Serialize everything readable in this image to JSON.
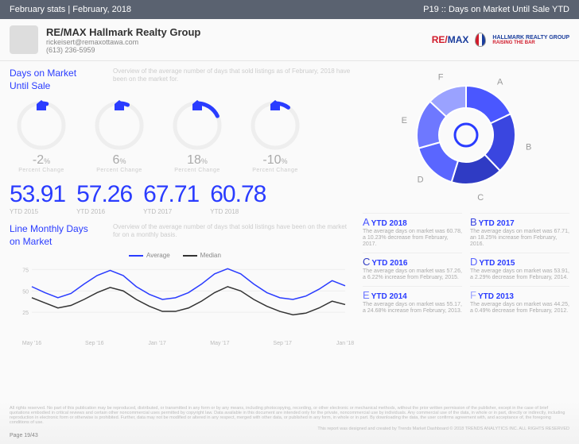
{
  "topbar": {
    "left": "February stats | February, 2018",
    "right": "P19 :: Days on Market Until Sale YTD"
  },
  "agent": {
    "name": "RE/MAX Hallmark Realty Group",
    "email": "rickeisert@remaxottawa.com",
    "phone": "(613) 236-5959"
  },
  "brand": {
    "remax": "RE/MAX",
    "hallmark_line1": "HALLMARK REALTY GROUP",
    "hallmark_line2": "RAISING THE BAR"
  },
  "days_section": {
    "title": "Days on Market",
    "title2": "Until Sale",
    "overview": "Overview of the average number of days that sold listings as of February, 2018 have been on the market for."
  },
  "gauges": [
    {
      "pct": "-2",
      "label": "Percent Change",
      "arc_deg": 14,
      "color": "#2a3cff"
    },
    {
      "pct": "6",
      "label": "Percent Change",
      "arc_deg": 22,
      "color": "#2a3cff"
    },
    {
      "pct": "18",
      "label": "Percent Change",
      "arc_deg": 65,
      "color": "#2a3cff"
    },
    {
      "pct": "-10",
      "label": "Percent Change",
      "arc_deg": 36,
      "color": "#2a3cff"
    }
  ],
  "ytd": [
    {
      "value": "53.91",
      "label": "YTD 2015"
    },
    {
      "value": "57.26",
      "label": "YTD 2016"
    },
    {
      "value": "67.71",
      "label": "YTD 2017"
    },
    {
      "value": "60.78",
      "label": "YTD 2018"
    }
  ],
  "line_section": {
    "title": "Line Monthly Days",
    "title2": "on Market",
    "overview": "Overview of the average number of days that sold listings have been on the market for on a monthly basis.",
    "legend_avg": "Average",
    "legend_med": "Median",
    "series_colors": {
      "avg": "#2a3cff",
      "med": "#333333"
    },
    "x_labels": [
      "May '16",
      "Sep '16",
      "Jan '17",
      "May '17",
      "Sep '17",
      "Jan '18"
    ],
    "y_ticks": [
      25,
      50,
      75
    ],
    "avg": [
      55,
      48,
      42,
      47,
      58,
      68,
      74,
      68,
      55,
      46,
      40,
      42,
      48,
      58,
      70,
      76,
      70,
      58,
      48,
      42,
      40,
      44,
      52,
      62,
      56
    ],
    "med": [
      42,
      36,
      30,
      33,
      40,
      48,
      54,
      50,
      40,
      32,
      26,
      26,
      30,
      38,
      48,
      55,
      50,
      40,
      32,
      26,
      22,
      24,
      30,
      38,
      34
    ]
  },
  "donut": {
    "labels": [
      "A",
      "B",
      "C",
      "D",
      "E",
      "F"
    ],
    "colors": [
      "#4a57ff",
      "#3a46e0",
      "#2f3bc4",
      "#5a66ff",
      "#6e78ff",
      "#9aa2ff"
    ],
    "values": [
      60.78,
      67.71,
      57.26,
      53.91,
      55.17,
      44.25
    ]
  },
  "donut_legend": [
    {
      "letter": "A",
      "letter_color": "#4a57ff",
      "title": "YTD 2018",
      "desc": "The average days on market was 60.78, a 10.23% decrease from February, 2017."
    },
    {
      "letter": "B",
      "letter_color": "#3a46e0",
      "title": "YTD 2017",
      "desc": "The average days on market was 67.71, an 18.25% increase from February, 2016."
    },
    {
      "letter": "C",
      "letter_color": "#2f3bc4",
      "title": "YTD 2016",
      "desc": "The average days on market was 57.26, a 6.22% increase from February, 2015."
    },
    {
      "letter": "D",
      "letter_color": "#5a66ff",
      "title": "YTD 2015",
      "desc": "The average days on market was 53.91, a 2.29% decrease from February, 2014."
    },
    {
      "letter": "E",
      "letter_color": "#6e78ff",
      "title": "YTD 2014",
      "desc": "The average days on market was 55.17, a 24.68% increase from February, 2013."
    },
    {
      "letter": "F",
      "letter_color": "#9aa2ff",
      "title": "YTD 2013",
      "desc": "The average days on market was 44.25, a 0.49% decrease from February, 2012."
    }
  ],
  "footer": {
    "disclaimer": "All rights reserved. No part of this publication may be reproduced, distributed, or transmitted in any form or by any means, including photocopying, recording, or other electronic or mechanical methods, without the prior written permission of the publisher, except in the case of brief quotations embodied in critical reviews and certain other noncommercial uses permitted by copyright law. Data available in this document are intended only for the private, noncommercial use by individuals. Any commercial use of the data, in whole or in part, directly or indirectly, including reproduction in electronic form or otherwise is prohibited. Further, data may not be modified or altered in any respect, merged with other data, or published in any form, in whole or in part. By downloading the data, the user confirms agreement with, and acceptance of, the foregoing conditions of use.",
    "credit": "This report was designed and created by Trends Market Dashboard © 2018 TRENDS ANALYTICS INC. ALL RIGHTS RESERVED",
    "page": "Page 19/43"
  }
}
